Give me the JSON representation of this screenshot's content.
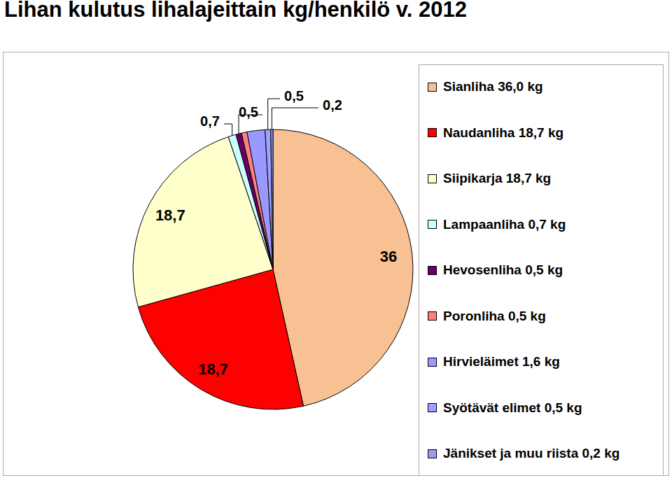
{
  "chart_data": {
    "type": "pie",
    "title": "Lihan kulutus lihalajeittain kg/henkilö v. 2012",
    "categories": [
      "Sianliha 36,0 kg",
      "Naudanliha 18,7 kg",
      "Siipikarja 18,7 kg",
      "Lampaanliha 0,7 kg",
      "Hevosenliha 0,5 kg",
      "Poronliha 0,5 kg",
      "Hirvieläimet 1,6 kg",
      "Syötävät elimet 0,5 kg",
      "Jänikset ja muu riista 0,2 kg"
    ],
    "values": [
      36,
      18.7,
      18.7,
      0.7,
      0.5,
      0.5,
      1.6,
      0.5,
      0.2
    ],
    "colors": [
      "#F8C194",
      "#FF0000",
      "#FFFFCC",
      "#CCFFFF",
      "#660066",
      "#FF8080",
      "#9999FF",
      "#A0A0FF",
      "#9A9AF8"
    ],
    "data_labels": true,
    "value_labels": [
      "36",
      "18,7",
      "18,7",
      "0,7",
      "0,5",
      null,
      null,
      "0,5",
      "0,2"
    ],
    "legend": "right"
  }
}
